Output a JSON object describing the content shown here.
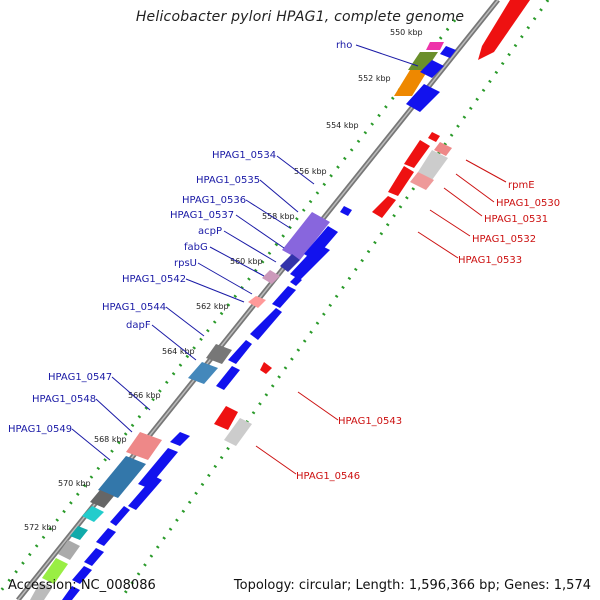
{
  "title": "Helicobacter pylori HPAG1, complete genome",
  "accession": "Accession: NC_008086",
  "summary": "Topology: circular; Length: 1,596,366 bp; Genes: 1,574",
  "kbp_ticks": [
    "550 kbp",
    "552 kbp",
    "554 kbp",
    "556 kbp",
    "558 kbp",
    "560 kbp",
    "562 kbp",
    "564 kbp",
    "566 kbp",
    "568 kbp",
    "570 kbp",
    "572 kbp"
  ],
  "labels_forward": [
    "rho",
    "HPAG1_0534",
    "HPAG1_0535",
    "HPAG1_0536",
    "HPAG1_0537",
    "acpP",
    "fabG",
    "rpsU",
    "HPAG1_0542",
    "HPAG1_0544",
    "dapF",
    "HPAG1_0547",
    "HPAG1_0548",
    "HPAG1_0549"
  ],
  "labels_reverse": [
    "rpmE",
    "HPAG1_0530",
    "HPAG1_0531",
    "HPAG1_0532",
    "HPAG1_0533",
    "HPAG1_0543",
    "HPAG1_0546"
  ],
  "colors": {
    "forward_gene": "#1010ee",
    "reverse_gene": "#ee1111",
    "backbone": "#888888",
    "tick": "#229922",
    "label_blue": "#1a1aa6",
    "label_red": "#cc1111"
  }
}
